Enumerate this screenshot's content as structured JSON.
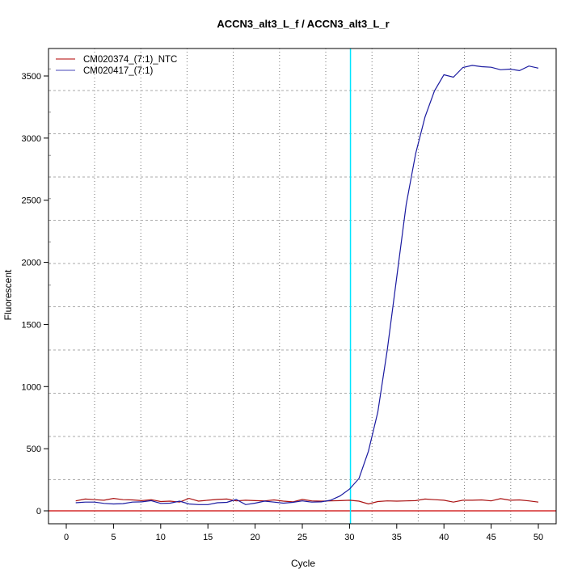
{
  "chart_data": {
    "type": "line",
    "title": "ACCN3_alt3_L_f / ACCN3_alt3_L_r",
    "xlabel": "Cycle",
    "ylabel": "Fluorescent",
    "xlim": [
      -2,
      52
    ],
    "ylim": [
      -90,
      3720
    ],
    "xticks": [
      0,
      5,
      10,
      15,
      20,
      25,
      30,
      35,
      40,
      45,
      50
    ],
    "yticks": [
      0,
      500,
      1000,
      1500,
      2000,
      2500,
      3000,
      3500
    ],
    "grid": true,
    "legend_position": "top-left",
    "threshold_cycle": 30.1,
    "threshold_color": "#00e5ff",
    "baseline_value": 0,
    "baseline_color": "#cc0000",
    "x": [
      1,
      2,
      3,
      4,
      5,
      6,
      7,
      8,
      9,
      10,
      11,
      12,
      13,
      14,
      15,
      16,
      17,
      18,
      19,
      20,
      21,
      22,
      23,
      24,
      25,
      26,
      27,
      28,
      29,
      30,
      31,
      32,
      33,
      34,
      35,
      36,
      37,
      38,
      39,
      40,
      41,
      42,
      43,
      44,
      45,
      46,
      47,
      48,
      49,
      50
    ],
    "series": [
      {
        "name": "CM020374_(7:1)_NTC",
        "color": "#aa1111",
        "values": [
          80,
          95,
          90,
          85,
          100,
          90,
          88,
          82,
          90,
          75,
          78,
          70,
          100,
          78,
          85,
          92,
          95,
          80,
          85,
          82,
          80,
          88,
          78,
          72,
          92,
          80,
          78,
          80,
          82,
          85,
          78,
          55,
          75,
          80,
          78,
          80,
          82,
          95,
          90,
          85,
          70,
          85,
          85,
          88,
          80,
          98,
          85,
          88,
          80,
          70
        ]
      },
      {
        "name": "CM020417_(7:1)",
        "color": "#1a1aa0",
        "values": [
          65,
          70,
          70,
          60,
          55,
          58,
          70,
          72,
          82,
          60,
          62,
          78,
          55,
          50,
          50,
          65,
          68,
          92,
          50,
          62,
          78,
          70,
          62,
          68,
          80,
          70,
          72,
          85,
          120,
          175,
          260,
          480,
          795,
          1295,
          1880,
          2465,
          2875,
          3170,
          3380,
          3510,
          3490,
          3568,
          3585,
          3575,
          3570,
          3550,
          3555,
          3543,
          3580,
          3563
        ]
      }
    ]
  }
}
